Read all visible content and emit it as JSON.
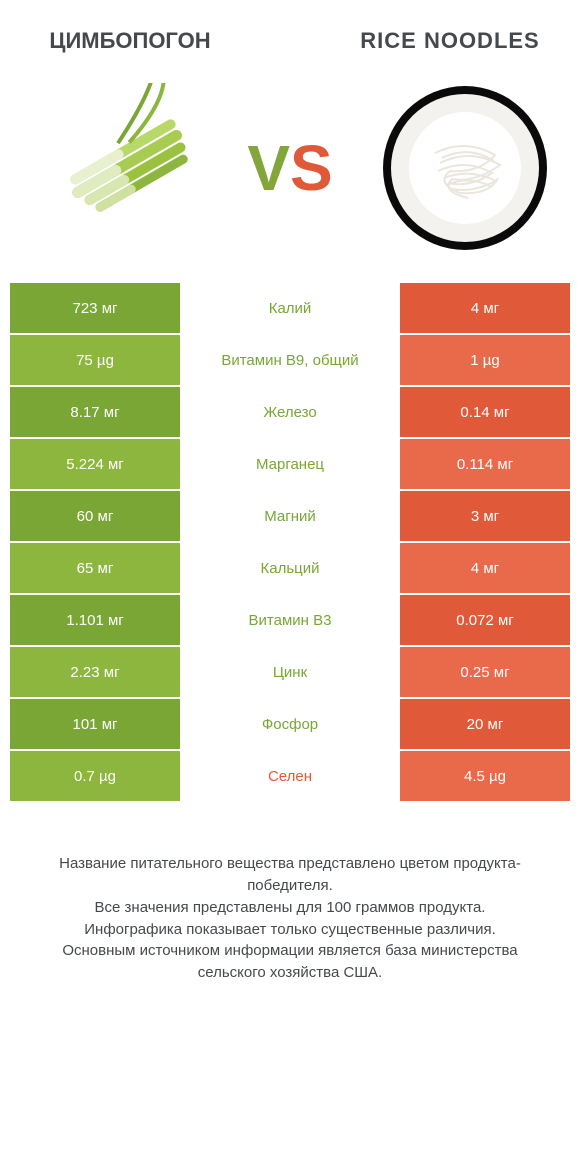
{
  "colors": {
    "green": "#8cb63e",
    "green_dark": "#7aa635",
    "red": "#e86a4a",
    "red_dark": "#e05a3a",
    "text": "#46494c",
    "white": "#ffffff"
  },
  "header": {
    "left_title": "ЦИМБОПОГОН",
    "right_title": "RICE NOODLES",
    "vs_v": "V",
    "vs_s": "S"
  },
  "rows": [
    {
      "left": "723 мг",
      "mid": "Калий",
      "right": "4 мг",
      "winner": "left",
      "shade": "dark"
    },
    {
      "left": "75 µg",
      "mid": "Витамин B9, общий",
      "right": "1 µg",
      "winner": "left",
      "shade": "light"
    },
    {
      "left": "8.17 мг",
      "mid": "Железо",
      "right": "0.14 мг",
      "winner": "left",
      "shade": "dark"
    },
    {
      "left": "5.224 мг",
      "mid": "Марганец",
      "right": "0.114 мг",
      "winner": "left",
      "shade": "light"
    },
    {
      "left": "60 мг",
      "mid": "Магний",
      "right": "3 мг",
      "winner": "left",
      "shade": "dark"
    },
    {
      "left": "65 мг",
      "mid": "Кальций",
      "right": "4 мг",
      "winner": "left",
      "shade": "light"
    },
    {
      "left": "1.101 мг",
      "mid": "Витамин B3",
      "right": "0.072 мг",
      "winner": "left",
      "shade": "dark"
    },
    {
      "left": "2.23 мг",
      "mid": "Цинк",
      "right": "0.25 мг",
      "winner": "left",
      "shade": "light"
    },
    {
      "left": "101 мг",
      "mid": "Фосфор",
      "right": "20 мг",
      "winner": "left",
      "shade": "dark"
    },
    {
      "left": "0.7 µg",
      "mid": "Селен",
      "right": "4.5 µg",
      "winner": "right",
      "shade": "light"
    }
  ],
  "footer": {
    "l1": "Название питательного вещества представлено цветом продукта-победителя.",
    "l2": "Все значения представлены для 100 граммов продукта.",
    "l3": "Инфографика показывает только существенные различия.",
    "l4": "Основным источником информации является база министерства сельского хозяйства США."
  }
}
